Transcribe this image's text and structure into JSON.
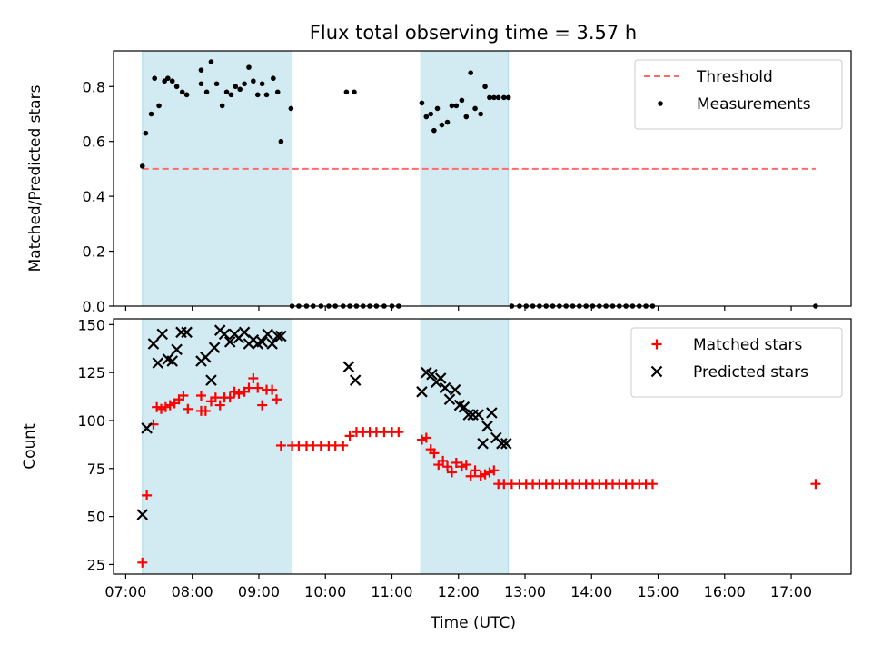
{
  "figure": {
    "title": "Flux total observing time = 3.57 h",
    "xlabel": "Time (UTC)",
    "x_ticks": [
      "07:00",
      "08:00",
      "09:00",
      "10:00",
      "11:00",
      "12:00",
      "13:00",
      "14:00",
      "15:00",
      "16:00",
      "17:00"
    ]
  },
  "chart_data": [
    {
      "type": "scatter",
      "ylabel": "Matched/Predicted stars",
      "xlim": [
        "06:49",
        "17:54"
      ],
      "ylim": [
        0,
        0.93
      ],
      "y_ticks": [
        "0.0",
        "0.2",
        "0.4",
        "0.6",
        "0.8"
      ],
      "x_units": "time of day (HH:MM)",
      "shaded_intervals": [
        [
          "07:15",
          "09:30"
        ],
        [
          "11:26",
          "12:45"
        ]
      ],
      "shade_color": "#add8e6",
      "legend_position": "top-right",
      "threshold": {
        "name": "Threshold",
        "value": 0.5,
        "x_range": [
          "07:15",
          "17:22"
        ],
        "color": "#ff6b6b",
        "style": "dashed"
      },
      "series": [
        {
          "name": "Measurements",
          "color": "#000000",
          "marker": "dot",
          "x": [
            "07:15",
            "07:18",
            "07:23",
            "07:26",
            "07:30",
            "07:35",
            "07:38",
            "07:42",
            "07:46",
            "07:51",
            "07:55",
            "08:08",
            "08:08",
            "08:13",
            "08:17",
            "08:22",
            "08:27",
            "08:31",
            "08:35",
            "08:39",
            "08:43",
            "08:47",
            "08:51",
            "08:55",
            "08:59",
            "09:03",
            "09:07",
            "09:13",
            "09:17",
            "09:20",
            "09:29",
            "10:19",
            "10:26",
            "11:27",
            "11:31",
            "11:35",
            "11:38",
            "11:41",
            "11:45",
            "11:50",
            "11:54",
            "11:58",
            "12:03",
            "12:07",
            "12:11",
            "12:15",
            "12:20",
            "12:24",
            "12:28",
            "12:32",
            "12:36",
            "12:41",
            "12:45"
          ],
          "y": [
            0.51,
            0.63,
            0.7,
            0.83,
            0.73,
            0.82,
            0.83,
            0.82,
            0.8,
            0.78,
            0.77,
            0.81,
            0.86,
            0.78,
            0.89,
            0.81,
            0.73,
            0.78,
            0.77,
            0.8,
            0.79,
            0.81,
            0.87,
            0.82,
            0.77,
            0.81,
            0.77,
            0.83,
            0.78,
            0.6,
            0.72,
            0.78,
            0.78,
            0.74,
            0.69,
            0.7,
            0.64,
            0.72,
            0.66,
            0.67,
            0.73,
            0.73,
            0.75,
            0.69,
            0.85,
            0.72,
            0.7,
            0.8,
            0.76,
            0.76,
            0.76,
            0.76,
            0.76
          ]
        },
        {
          "name": "",
          "color": "#000000",
          "marker": "dot",
          "x": [
            "09:30",
            "09:36",
            "09:43",
            "09:49",
            "09:56",
            "10:03",
            "10:09",
            "10:16",
            "10:22",
            "10:28",
            "10:34",
            "10:40",
            "10:46",
            "10:53",
            "11:00",
            "11:06",
            "12:48",
            "12:55",
            "13:01",
            "13:07",
            "13:13",
            "13:19",
            "13:25",
            "13:31",
            "13:37",
            "13:43",
            "13:49",
            "13:55",
            "14:01",
            "14:07",
            "14:13",
            "14:19",
            "14:25",
            "14:31",
            "14:37",
            "14:43",
            "14:49",
            "14:55",
            "17:22"
          ],
          "y": [
            0,
            0,
            0,
            0,
            0,
            0,
            0,
            0,
            0,
            0,
            0,
            0,
            0,
            0,
            0,
            0,
            0,
            0,
            0,
            0,
            0,
            0,
            0,
            0,
            0,
            0,
            0,
            0,
            0,
            0,
            0,
            0,
            0,
            0,
            0,
            0,
            0,
            0,
            0
          ]
        }
      ]
    },
    {
      "type": "scatter",
      "ylabel": "Count",
      "xlim": [
        "06:49",
        "17:54"
      ],
      "ylim": [
        20,
        153
      ],
      "y_ticks": [
        "25",
        "50",
        "75",
        "100",
        "125",
        "150"
      ],
      "x_units": "time of day (HH:MM)",
      "shaded_intervals": [
        [
          "07:15",
          "09:30"
        ],
        [
          "11:26",
          "12:45"
        ]
      ],
      "shade_color": "#add8e6",
      "legend_position": "top-right",
      "series": [
        {
          "name": "Matched stars",
          "color": "#ff0000",
          "marker": "plus",
          "x": [
            "07:15",
            "07:19",
            "07:25",
            "07:28",
            "07:32",
            "07:36",
            "07:40",
            "07:44",
            "07:48",
            "07:52",
            "07:56",
            "08:08",
            "08:08",
            "08:12",
            "08:17",
            "08:21",
            "08:25",
            "08:29",
            "08:34",
            "08:38",
            "08:42",
            "08:47",
            "08:51",
            "08:55",
            "08:59",
            "09:03",
            "09:07",
            "09:12",
            "09:16",
            "09:20",
            "09:30",
            "09:36",
            "09:43",
            "09:49",
            "09:56",
            "10:03",
            "10:09",
            "10:16",
            "10:22",
            "10:28",
            "10:34",
            "10:40",
            "10:46",
            "10:53",
            "11:00",
            "11:06",
            "11:27",
            "11:31",
            "11:35",
            "11:38",
            "11:42",
            "11:46",
            "11:50",
            "11:54",
            "11:58",
            "12:03",
            "12:07",
            "12:11",
            "12:15",
            "12:20",
            "12:24",
            "12:28",
            "12:32",
            "12:36",
            "12:41",
            "12:48",
            "12:55",
            "13:01",
            "13:07",
            "13:13",
            "13:19",
            "13:25",
            "13:31",
            "13:37",
            "13:43",
            "13:49",
            "13:55",
            "14:01",
            "14:07",
            "14:13",
            "14:19",
            "14:25",
            "14:31",
            "14:37",
            "14:43",
            "14:49",
            "14:55",
            "17:22"
          ],
          "y": [
            26,
            61,
            98,
            107,
            106,
            107,
            108,
            109,
            111,
            113,
            106,
            113,
            105,
            105,
            110,
            112,
            108,
            112,
            112,
            115,
            114,
            115,
            117,
            122,
            117,
            108,
            116,
            116,
            111,
            87,
            87,
            87,
            87,
            87,
            87,
            87,
            87,
            87,
            92,
            94,
            94,
            94,
            94,
            94,
            94,
            94,
            90,
            91,
            85,
            83,
            77,
            79,
            76,
            73,
            78,
            76,
            77,
            71,
            74,
            71,
            72,
            73,
            74,
            67,
            67,
            67,
            67,
            67,
            67,
            67,
            67,
            67,
            67,
            67,
            67,
            67,
            67,
            67,
            67,
            67,
            67,
            67,
            67,
            67,
            67,
            67,
            67,
            67
          ]
        },
        {
          "name": "Predicted stars",
          "color": "#000000",
          "marker": "x",
          "x": [
            "07:15",
            "07:19",
            "07:25",
            "07:29",
            "07:33",
            "07:38",
            "07:42",
            "07:46",
            "07:50",
            "07:55",
            "08:08",
            "08:12",
            "08:17",
            "08:20",
            "08:25",
            "08:29",
            "08:34",
            "08:38",
            "08:42",
            "08:47",
            "08:51",
            "08:55",
            "08:59",
            "09:03",
            "09:08",
            "09:12",
            "09:17",
            "09:20",
            "10:21",
            "10:27",
            "11:27",
            "11:31",
            "11:36",
            "11:40",
            "11:44",
            "11:48",
            "11:52",
            "11:57",
            "12:01",
            "12:05",
            "12:09",
            "12:13",
            "12:18",
            "12:22",
            "12:26",
            "12:30",
            "12:34",
            "12:39",
            "12:43"
          ],
          "y": [
            51,
            96,
            140,
            130,
            145,
            132,
            131,
            137,
            146,
            146,
            131,
            133,
            121,
            138,
            147,
            145,
            141,
            145,
            143,
            146,
            140,
            142,
            140,
            141,
            145,
            140,
            144,
            144,
            128,
            121,
            115,
            125,
            124,
            120,
            122,
            117,
            111,
            116,
            108,
            107,
            103,
            103,
            103,
            88,
            97,
            104,
            91,
            88,
            88
          ]
        }
      ]
    }
  ]
}
